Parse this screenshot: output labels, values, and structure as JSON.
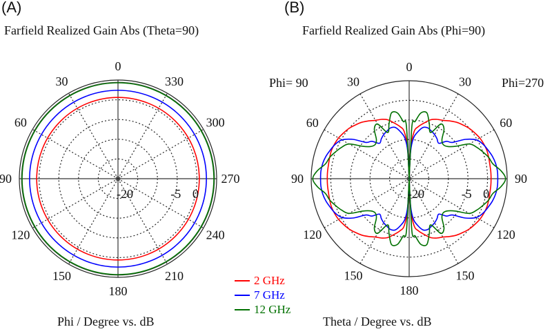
{
  "panels": {
    "a_label": "(A)",
    "b_label": "(B)"
  },
  "legend": [
    {
      "label": "2 GHz",
      "color": "#ff0000"
    },
    {
      "label": "7 GHz",
      "color": "#0000ff"
    },
    {
      "label": "12 GHz",
      "color": "#007000"
    }
  ],
  "chart_data": [
    {
      "type": "polar-line",
      "panel": "(A)",
      "title": "Farfield Realized Gain Abs (Theta=90)",
      "xlabel": "Phi / Degree vs. dB",
      "angle_direction": "counterclockwise",
      "angle_zero": "top",
      "angle_tick_labels": [
        {
          "angle": 0,
          "label": "0"
        },
        {
          "angle": 30,
          "label": "30"
        },
        {
          "angle": 60,
          "label": "60"
        },
        {
          "angle": 90,
          "label": "90"
        },
        {
          "angle": 120,
          "label": "120"
        },
        {
          "angle": 150,
          "label": "150"
        },
        {
          "angle": 180,
          "label": "180"
        },
        {
          "angle": 210,
          "label": "210"
        },
        {
          "angle": 240,
          "label": "240"
        },
        {
          "angle": 270,
          "label": "270"
        },
        {
          "angle": 300,
          "label": "300"
        },
        {
          "angle": 330,
          "label": "330"
        }
      ],
      "radial_range_db": [
        -20,
        5
      ],
      "radial_grid_db": [
        -15,
        -10,
        -5,
        0
      ],
      "radial_tick_labels": [
        "-20",
        "-5",
        "0"
      ],
      "grid": true,
      "series": [
        {
          "name": "2 GHz",
          "color": "#ff0000",
          "constant_db": 0.6
        },
        {
          "name": "7 GHz",
          "color": "#0000ff",
          "constant_db": 2.4
        },
        {
          "name": "12 GHz",
          "color": "#007000",
          "constant_db": 4.3
        }
      ]
    },
    {
      "type": "polar-line",
      "panel": "(B)",
      "title": "Farfield Realized Gain Abs (Phi=90)",
      "xlabel": "Theta / Degree vs. dB",
      "side_labels": {
        "left": "Phi= 90",
        "right": "Phi=270"
      },
      "angle_zero": "top",
      "angle_tick_labels": [
        {
          "angle": 0,
          "label": "0"
        },
        {
          "angle": 30,
          "label": "30"
        },
        {
          "angle": 60,
          "label": "60"
        },
        {
          "angle": 90,
          "label": "90"
        },
        {
          "angle": 120,
          "label": "120"
        },
        {
          "angle": 150,
          "label": "150"
        },
        {
          "angle": 180,
          "label": "180"
        },
        {
          "angle": -150,
          "label": "150"
        },
        {
          "angle": -120,
          "label": "120"
        },
        {
          "angle": -90,
          "label": "90"
        },
        {
          "angle": -60,
          "label": "60"
        },
        {
          "angle": -30,
          "label": "30"
        }
      ],
      "radial_range_db": [
        -20,
        5
      ],
      "radial_grid_db": [
        -15,
        -10,
        -5,
        0
      ],
      "radial_tick_labels": [
        "-20",
        "-5",
        "0"
      ],
      "grid": true,
      "symmetry": "mirrored left/right (Phi=90 side and Phi=270 side)",
      "theta": [
        0,
        3,
        6,
        10,
        15,
        20,
        25,
        30,
        35,
        40,
        45,
        50,
        55,
        60,
        65,
        70,
        75,
        80,
        85,
        90,
        95,
        100,
        105,
        110,
        115,
        120,
        125,
        130,
        135,
        140,
        145,
        150,
        155,
        160,
        165,
        170,
        174,
        177,
        180
      ],
      "series": [
        {
          "name": "2 GHz",
          "color": "#ff0000",
          "db": [
            -20,
            -12,
            -7.9,
            -6.5,
            -5.3,
            -4.0,
            -3.3,
            -2.8,
            -2.0,
            -1.2,
            -0.6,
            0.0,
            0.4,
            0.8,
            1.0,
            1.1,
            1.0,
            0.9,
            0.9,
            0.9,
            0.9,
            0.9,
            1.0,
            1.1,
            1.0,
            0.8,
            0.4,
            0.0,
            -0.6,
            -1.2,
            -2.0,
            -2.8,
            -3.3,
            -4.0,
            -5.3,
            -6.5,
            -7.9,
            -12,
            -20
          ]
        },
        {
          "name": "7 GHz",
          "color": "#0000ff",
          "db": [
            -20,
            -13,
            -9.6,
            -8.0,
            -6.5,
            -6.2,
            -6.6,
            -7.0,
            -7.6,
            -8.2,
            -6.5,
            -5.6,
            -2.5,
            -0.2,
            0.8,
            1.4,
            2.0,
            2.4,
            2.6,
            2.6,
            2.6,
            2.4,
            2.0,
            1.4,
            0.8,
            -0.2,
            -2.5,
            -5.6,
            -6.5,
            -8.2,
            -7.6,
            -7.0,
            -6.6,
            -6.2,
            -6.5,
            -8.0,
            -9.6,
            -13,
            -20
          ]
        },
        {
          "name": "12 GHz",
          "color": "#007000",
          "db": [
            -20,
            -6.5,
            -5.3,
            -3.0,
            -2.6,
            -5.0,
            -7.0,
            -3.9,
            -4.5,
            -7.0,
            -7.7,
            -7.2,
            -5.6,
            -2.3,
            -1.0,
            0.0,
            1.0,
            1.7,
            3.5,
            4.6,
            3.5,
            1.7,
            1.0,
            0.0,
            -1.0,
            -2.3,
            -5.6,
            -7.2,
            -7.7,
            -7.0,
            -4.5,
            -3.9,
            -7.0,
            -5.0,
            -2.6,
            -3.0,
            -5.3,
            -6.5,
            -20
          ]
        }
      ]
    }
  ]
}
